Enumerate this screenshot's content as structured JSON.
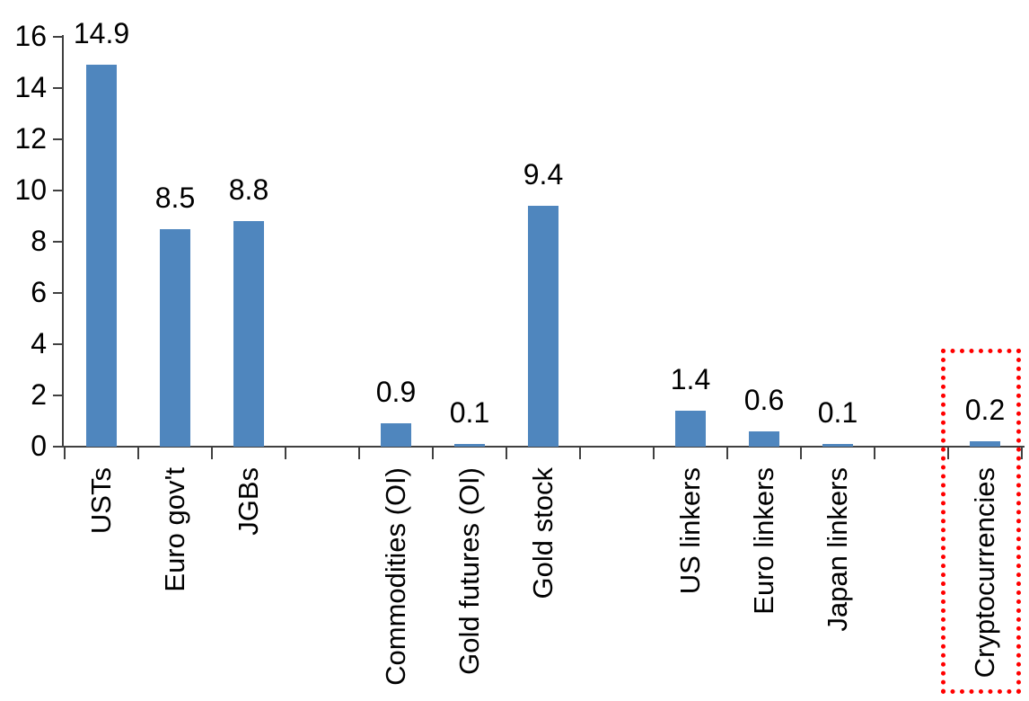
{
  "chart_data": {
    "type": "bar",
    "title": "",
    "xlabel": "",
    "ylabel": "",
    "categories": [
      "USTs",
      "Euro gov't",
      "JGBs",
      "",
      "Commodities (OI)",
      "Gold futures (OI)",
      "Gold stock",
      "",
      "US linkers",
      "Euro linkers",
      "Japan linkers",
      "",
      "Cryptocurrencies"
    ],
    "values": [
      14.9,
      8.5,
      8.8,
      null,
      0.9,
      0.1,
      9.4,
      null,
      1.4,
      0.6,
      0.1,
      null,
      0.2
    ],
    "bar_labels": [
      "14.9",
      "8.5",
      "8.8",
      "",
      "0.9",
      "0.1",
      "9.4",
      "",
      "1.4",
      "0.6",
      "0.1",
      "",
      "0.2"
    ],
    "ylim": [
      0,
      16
    ],
    "yticks": [
      0,
      2,
      4,
      6,
      8,
      10,
      12,
      14,
      16
    ],
    "grid": false,
    "legend": "none",
    "bar_color": "#4F86BE",
    "axis_color": "#404040",
    "text_color": "#000000",
    "highlight": {
      "target_category": "Cryptocurrencies",
      "border_color": "#FF0000",
      "border_style": "dotted"
    }
  }
}
